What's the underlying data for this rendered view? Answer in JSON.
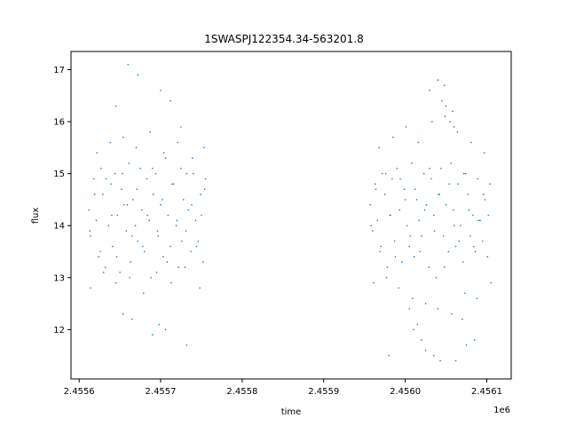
{
  "chart_data": {
    "type": "scatter",
    "title": "1SWASPJ122354.34-563201.8",
    "xlabel": "time",
    "ylabel": "flux",
    "x_offset_label": "1e6",
    "xlim": [
      2455590,
      2456130
    ],
    "ylim": [
      11.05,
      17.35
    ],
    "x_ticks": [
      2455600,
      2455700,
      2455800,
      2455900,
      2456000,
      2456100
    ],
    "x_tick_labels": [
      "2.4556",
      "2.4557",
      "2.4558",
      "2.4559",
      "2.4560",
      "2.4561"
    ],
    "y_ticks": [
      12,
      13,
      14,
      15,
      16,
      17
    ],
    "y_tick_labels": [
      "12",
      "13",
      "14",
      "15",
      "16",
      "17"
    ],
    "grid": false,
    "marker_color": "#1f77b4",
    "series": [
      {
        "x": [
          2455612,
          2455614,
          2455618,
          2455621,
          2455624,
          2455627,
          2455629,
          2455632,
          2455636,
          2455639,
          2455641,
          2455644,
          2455647,
          2455650,
          2455652,
          2455655,
          2455658,
          2455661,
          2455663,
          2455666,
          2455669,
          2455672,
          2455675,
          2455677,
          2455680,
          2455683,
          2455686,
          2455688,
          2455691,
          2455694,
          2455697,
          2455700,
          2455703,
          2455706,
          2455709,
          2455712,
          2455716,
          2455719,
          2455722,
          2455725,
          2455728,
          2455731,
          2455734,
          2455737,
          2455740,
          2455743,
          2455746,
          2455749,
          2455752,
          2455755,
          2455613,
          2455619,
          2455626,
          2455633,
          2455640,
          2455646,
          2455653,
          2455659,
          2455665,
          2455671,
          2455678,
          2455684,
          2455690,
          2455696,
          2455702,
          2455708,
          2455714,
          2455720,
          2455726,
          2455732,
          2455738,
          2455744,
          2455750,
          2455754,
          2455614,
          2455622,
          2455630,
          2455638,
          2455645,
          2455654,
          2455662,
          2455670,
          2455679,
          2455687,
          2455695,
          2455704,
          2455713,
          2455721,
          2455730,
          2455739,
          2455748,
          2455753,
          2455660,
          2455700,
          2455665,
          2455698,
          2455690,
          2455712,
          2455672,
          2455732,
          2455706,
          2455654,
          2455725,
          2455645,
          2455957,
          2455960,
          2455963,
          2455966,
          2455969,
          2455972,
          2455975,
          2455978,
          2455981,
          2455984,
          2455987,
          2455990,
          2455993,
          2455996,
          2455999,
          2456002,
          2456005,
          2456008,
          2456011,
          2456014,
          2456017,
          2456020,
          2456023,
          2456026,
          2456029,
          2456032,
          2456035,
          2456038,
          2456041,
          2456044,
          2456047,
          2456050,
          2456053,
          2456056,
          2456059,
          2456062,
          2456065,
          2456068,
          2456071,
          2456074,
          2456077,
          2456080,
          2456083,
          2456086,
          2456089,
          2456092,
          2456095,
          2456098,
          2456101,
          2456104,
          2455958,
          2455964,
          2455970,
          2455976,
          2455982,
          2455988,
          2455994,
          2456000,
          2456006,
          2456012,
          2456018,
          2456024,
          2456030,
          2456036,
          2456042,
          2456048,
          2456054,
          2456060,
          2456066,
          2456072,
          2456078,
          2456084,
          2456090,
          2456096,
          2456102,
          2455961,
          2455968,
          2455977,
          2455985,
          2455992,
          2456001,
          2456009,
          2456016,
          2456025,
          2456033,
          2456040,
          2456049,
          2456057,
          2456064,
          2456073,
          2456081,
          2456088,
          2456097,
          2456105,
          2456040,
          2456045,
          2456055,
          2456030,
          2456050,
          2456060,
          2456010,
          2456020,
          2456070,
          2456035,
          2456062,
          2456025,
          2456043,
          2456015,
          2456005,
          2456075,
          2455980,
          2456085,
          2456048,
          2456058
        ],
        "y": [
          14.3,
          13.8,
          14.9,
          14.1,
          13.4,
          15.1,
          14.6,
          13.2,
          14.0,
          14.8,
          13.6,
          15.0,
          14.2,
          13.1,
          14.7,
          14.4,
          13.9,
          15.2,
          13.3,
          14.5,
          14.0,
          13.7,
          15.1,
          14.3,
          13.5,
          14.9,
          14.1,
          13.0,
          14.6,
          15.0,
          13.8,
          14.4,
          13.4,
          15.3,
          14.2,
          13.6,
          14.8,
          14.0,
          13.2,
          15.1,
          14.5,
          13.9,
          14.3,
          13.5,
          15.0,
          14.1,
          13.7,
          14.6,
          13.3,
          14.9,
          13.9,
          14.6,
          13.5,
          14.9,
          14.2,
          13.4,
          15.0,
          14.4,
          13.8,
          14.7,
          13.6,
          14.2,
          15.1,
          13.9,
          14.5,
          13.3,
          14.8,
          14.1,
          13.7,
          15.0,
          14.4,
          13.6,
          14.2,
          14.7,
          12.8,
          15.4,
          13.1,
          15.6,
          12.9,
          15.7,
          13.0,
          15.5,
          12.7,
          15.8,
          13.1,
          15.4,
          12.9,
          15.6,
          13.2,
          15.3,
          12.8,
          15.5,
          17.1,
          16.6,
          12.2,
          12.1,
          11.9,
          16.4,
          16.9,
          11.7,
          12.0,
          12.3,
          15.9,
          16.3,
          14.4,
          13.9,
          14.8,
          14.1,
          13.5,
          15.0,
          14.6,
          13.2,
          14.2,
          14.9,
          13.7,
          15.1,
          14.3,
          13.3,
          14.7,
          14.0,
          13.6,
          15.2,
          13.4,
          14.5,
          14.1,
          13.8,
          15.0,
          14.4,
          13.2,
          14.9,
          14.2,
          13.0,
          14.6,
          15.1,
          13.8,
          14.4,
          13.5,
          15.2,
          14.3,
          13.6,
          14.8,
          14.0,
          13.3,
          15.0,
          14.6,
          13.8,
          14.2,
          13.5,
          14.9,
          14.1,
          13.7,
          14.5,
          13.4,
          14.8,
          14.0,
          14.7,
          13.6,
          15.0,
          14.2,
          13.4,
          14.9,
          14.5,
          13.8,
          14.7,
          13.5,
          14.3,
          15.1,
          13.9,
          14.6,
          13.2,
          14.8,
          14.0,
          13.7,
          15.0,
          14.3,
          13.6,
          14.1,
          14.6,
          14.2,
          12.9,
          15.5,
          13.0,
          15.7,
          12.8,
          15.9,
          12.6,
          15.6,
          12.5,
          16.0,
          12.4,
          16.1,
          12.3,
          15.8,
          12.7,
          15.6,
          12.6,
          15.4,
          12.9,
          16.8,
          16.4,
          16.0,
          16.6,
          16.3,
          15.9,
          12.0,
          11.8,
          12.2,
          11.5,
          11.4,
          11.6,
          11.4,
          12.1,
          12.4,
          11.7,
          11.5,
          11.8,
          16.7,
          16.2
        ]
      }
    ]
  }
}
